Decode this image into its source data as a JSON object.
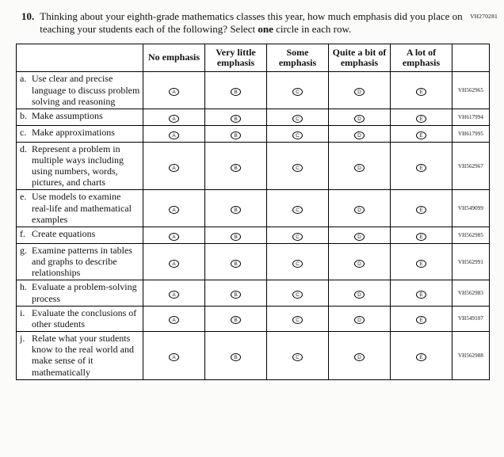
{
  "page": {
    "code": "VH270281"
  },
  "question": {
    "number": "10.",
    "text_before": "Thinking about your eighth-grade mathematics classes this year, how much emphasis did you place on teaching your students each of the following? Select ",
    "text_bold": "one",
    "text_after": " circle in each row."
  },
  "table": {
    "columns": [
      "No emphasis",
      "Very little emphasis",
      "Some emphasis",
      "Quite a bit of emphasis",
      "A lot of emphasis"
    ],
    "bubble_letters": [
      "A",
      "B",
      "C",
      "D",
      "E"
    ],
    "rows": [
      {
        "letter": "a.",
        "text": "Use clear and precise language to discuss problem solving and reasoning",
        "code": "VH562965"
      },
      {
        "letter": "b.",
        "text": "Make assumptions",
        "code": "VH617994"
      },
      {
        "letter": "c.",
        "text": "Make approximations",
        "code": "VH617995"
      },
      {
        "letter": "d.",
        "text": "Represent a problem in multiple ways including using numbers, words, pictures, and charts",
        "code": "VH562967"
      },
      {
        "letter": "e.",
        "text": "Use models to examine real-life and mathematical examples",
        "code": "VH549099"
      },
      {
        "letter": "f.",
        "text": "Create equations",
        "code": "VH562985"
      },
      {
        "letter": "g.",
        "text": "Examine patterns in tables and graphs to describe relationships",
        "code": "VH562991"
      },
      {
        "letter": "h.",
        "text": "Evaluate a problem-solving process",
        "code": "VH562983"
      },
      {
        "letter": "i.",
        "text": "Evaluate the conclusions of other students",
        "code": "VH549107"
      },
      {
        "letter": "j.",
        "text": "Relate what your students know to the real world and make sense of it mathematically",
        "code": "VH562988"
      }
    ]
  }
}
